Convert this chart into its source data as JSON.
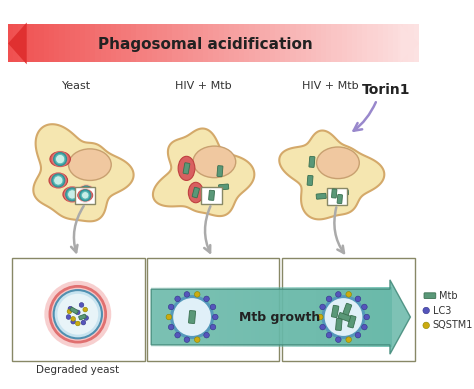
{
  "title": "Phagosomal acidification",
  "bg_color": "#ffffff",
  "cell_fill": "#f5e6b0",
  "cell_edge": "#d4a96a",
  "nucleus_fill": "#f0c8a0",
  "nucleus_edge": "#c8a070",
  "mtb_color": "#5a9878",
  "mtb_edge": "#3a7050",
  "lc3_color": "#5555bb",
  "sqstm1_color": "#ccaa10",
  "arrow_red_dark": "#e03030",
  "arrow_red_light": "#ffd8d8",
  "arrow_green": "#60b0a0",
  "arrow_green_edge": "#409080",
  "torin_arrow": "#9988cc",
  "gray_arrow": "#aaaaaa",
  "phagosome_border": "#5599bb",
  "phagosome_fill": "#e0f0f8",
  "yeast_outer": "#ee8888",
  "yeast_inner": "#f8d0d0",
  "yeast_ball_outer": "#40a8b0",
  "yeast_ball_inner": "#c8eee8",
  "labels": [
    "Yeast",
    "HIV + Mtb",
    "HIV + Mtb"
  ],
  "bottom_label": "Degraded yeast",
  "legend_labels": [
    "Mtb",
    "LC3",
    "SQSTM1"
  ],
  "torin1_label": "Torin1",
  "mtb_growth_label": "Mtb growth"
}
